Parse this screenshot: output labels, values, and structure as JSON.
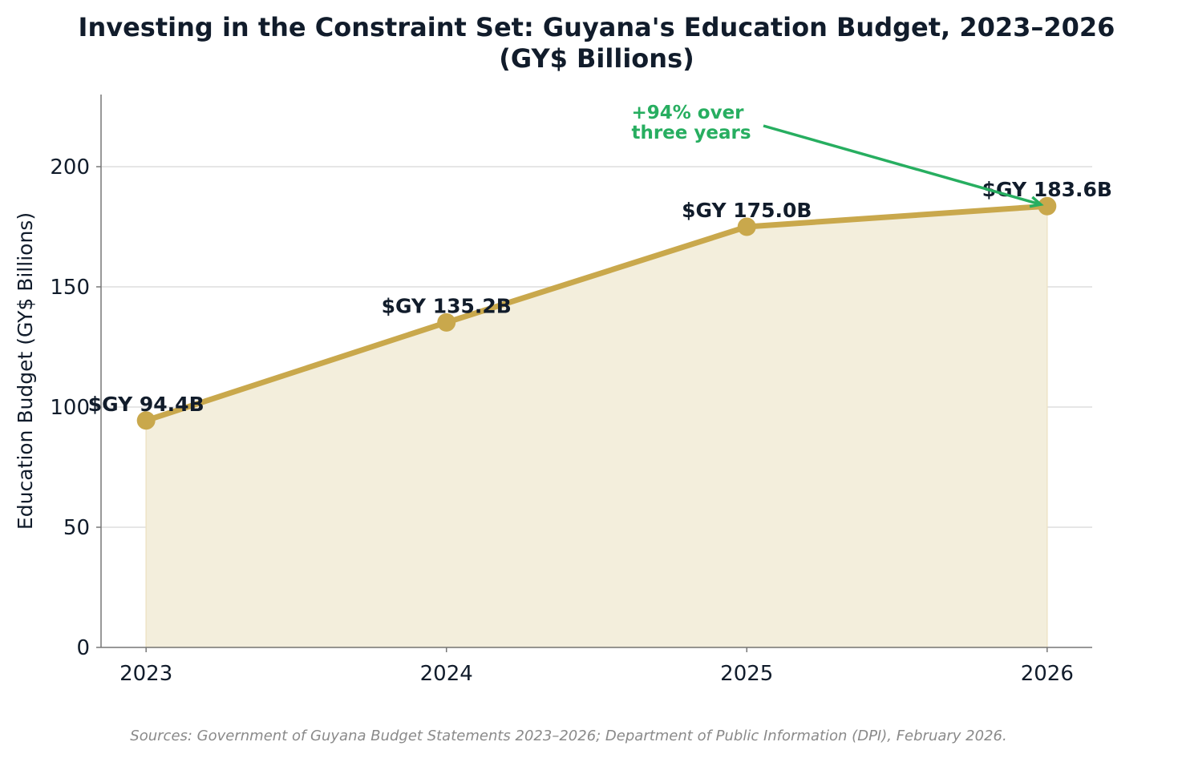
{
  "chart_data": {
    "type": "area",
    "title": "Investing in the Constraint Set: Guyana's Education Budget, 2023–2026",
    "subtitle": "(GY$ Billions)",
    "xlabel": "",
    "ylabel": "Education Budget (GY$ Billions)",
    "x": [
      2023,
      2024,
      2025,
      2026
    ],
    "x_tick_labels": [
      "2023",
      "2024",
      "2025",
      "2026"
    ],
    "values": [
      94.4,
      135.2,
      175.0,
      183.6
    ],
    "data_labels": [
      "$GY 94.4B",
      "$GY 135.2B",
      "$GY 175.0B",
      "$GY 183.6B"
    ],
    "xlim": [
      2022.85,
      2026.15
    ],
    "ylim": [
      0,
      230
    ],
    "y_ticks": [
      0,
      50,
      100,
      150,
      200
    ],
    "y_tick_labels": [
      "0",
      "50",
      "100",
      "150",
      "200"
    ],
    "grid": "horizontal",
    "annotation": {
      "lines": [
        "+94% over",
        "three years"
      ],
      "text_x": 2024.6,
      "text_y": 210,
      "target_x": 2026,
      "target_y": 183.6
    },
    "colors": {
      "line": "#C9A84C",
      "fill": "#F3EEDC",
      "annotation": "#27AE60",
      "text": "#111C2B",
      "grid": "#DDDDDD",
      "axis": "#777777"
    }
  },
  "source": "Sources: Government of Guyana Budget Statements 2023–2026; Department of Public Information (DPI), February 2026."
}
